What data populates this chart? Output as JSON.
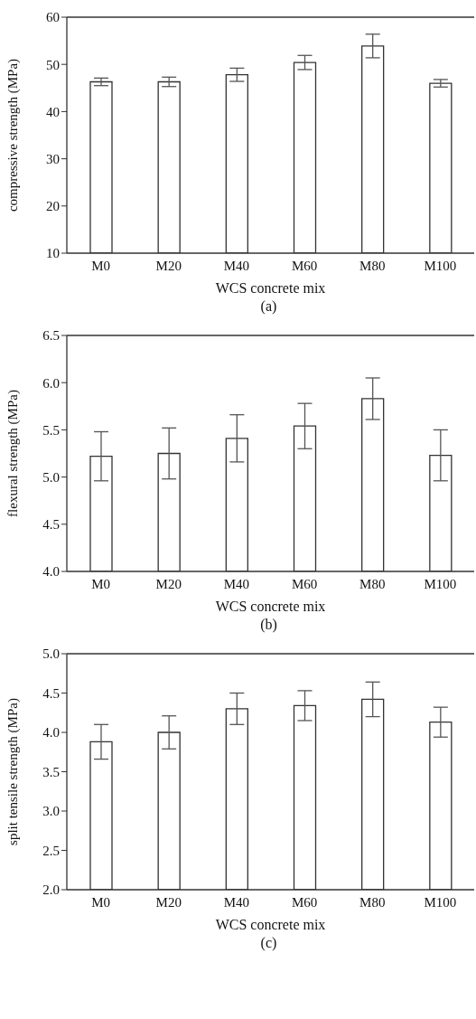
{
  "chart_data": [
    {
      "type": "bar",
      "categories": [
        "M0",
        "M20",
        "M40",
        "M60",
        "M80",
        "M100"
      ],
      "values": [
        46.3,
        46.3,
        47.8,
        50.4,
        53.9,
        46.0
      ],
      "errors": [
        0.8,
        1.0,
        1.4,
        1.5,
        2.5,
        0.8
      ],
      "color": "#ffffff",
      "ylim": [
        10,
        60
      ],
      "yticks": [
        10,
        20,
        30,
        40,
        50,
        60
      ],
      "xlabel": "WCS concrete mix",
      "ylabel": "compressive strength (MPa)",
      "annotations": [
        "(a)"
      ]
    },
    {
      "type": "bar",
      "categories": [
        "M0",
        "M20",
        "M40",
        "M60",
        "M80",
        "M100"
      ],
      "values": [
        5.22,
        5.25,
        5.41,
        5.54,
        5.83,
        5.23
      ],
      "errors": [
        0.26,
        0.27,
        0.25,
        0.24,
        0.22,
        0.27
      ],
      "color": "#ffffff",
      "ylim": [
        4,
        6.5
      ],
      "yticks": [
        {
          "value": 4,
          "label": "4.0"
        },
        {
          "value": 4.5,
          "label": "4.5"
        },
        {
          "value": 5,
          "label": "5.0"
        },
        {
          "value": 5.5,
          "label": "5.5"
        },
        {
          "value": 6,
          "label": "6.0"
        },
        {
          "value": 6.5,
          "label": "6.5"
        }
      ],
      "xlabel": "WCS concrete mix",
      "ylabel": "flexural strength (MPa)",
      "annotations": [
        "(b)"
      ]
    },
    {
      "type": "bar",
      "categories": [
        "M0",
        "M20",
        "M40",
        "M60",
        "M80",
        "M100"
      ],
      "values": [
        3.88,
        4.0,
        4.3,
        4.34,
        4.42,
        4.13
      ],
      "errors": [
        0.22,
        0.21,
        0.2,
        0.19,
        0.22,
        0.19
      ],
      "color": "#ffffff",
      "ylim": [
        2,
        5
      ],
      "yticks": [
        {
          "value": 2,
          "label": "2.0"
        },
        {
          "value": 2.5,
          "label": "2.5"
        },
        {
          "value": 3,
          "label": "3.0"
        },
        {
          "value": 3.5,
          "label": "3.5"
        },
        {
          "value": 4,
          "label": "4.0"
        },
        {
          "value": 4.5,
          "label": "4.5"
        },
        {
          "value": 5,
          "label": "5.0"
        }
      ],
      "xlabel": "WCS concrete mix",
      "ylabel": "split tensile strength (MPa)",
      "annotations": [
        "(c)"
      ]
    }
  ]
}
